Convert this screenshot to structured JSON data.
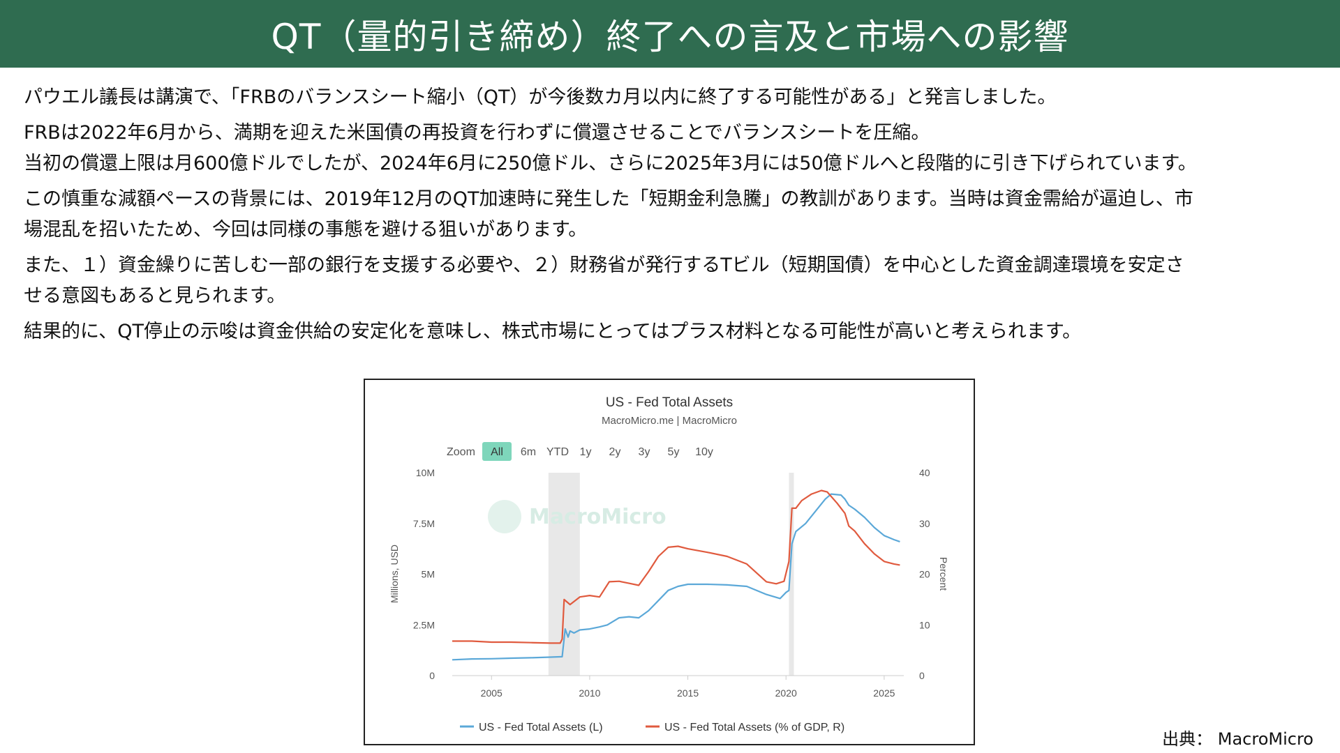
{
  "header": {
    "title": "QT（量的引き締め）終了への言及と市場への影響"
  },
  "paragraphs": [
    {
      "lines": [
        "パウエル議長は講演で、「FRBのバランスシート縮小（QT）が今後数カ月以内に終了する可能性がある」と発言しました。"
      ]
    },
    {
      "lines": [
        "FRBは2022年6月から、満期を迎えた米国債の再投資を行わずに償還させることでバランスシートを圧縮。",
        "当初の償還上限は月600億ドルでしたが、2024年6月に250億ドル、さらに2025年3月には50億ドルへと段階的に引き下げられています。"
      ]
    },
    {
      "lines": [
        "この慎重な減額ペースの背景には、2019年12月のQT加速時に発生した「短期金利急騰」の教訓があります。当時は資金需給が逼迫し、市",
        "場混乱を招いたため、今回は同様の事態を避ける狙いがあります。"
      ]
    },
    {
      "lines": [
        "また、１）資金繰りに苦しむ一部の銀行を支援する必要や、２）財務省が発行するTビル（短期国債）を中心とした資金調達環境を安定さ",
        "せる意図もあると見られます。"
      ]
    },
    {
      "lines": [
        "結果的に、QT停止の示唆は資金供給の安定化を意味し、株式市場にとってはプラス材料となる可能性が高いと考えられます。"
      ]
    }
  ],
  "source": "出典： MacroMicro",
  "chart_data": {
    "type": "line",
    "title": "US - Fed Total Assets",
    "subtitle": "MacroMicro.me | MacroMicro",
    "watermark": "MacroMicro",
    "zoom": {
      "label": "Zoom",
      "options": [
        "All",
        "6m",
        "YTD",
        "1y",
        "2y",
        "3y",
        "5y",
        "10y"
      ],
      "selected": "All"
    },
    "xlabel": "",
    "xlim": [
      2003,
      2026
    ],
    "xticks": [
      "2005",
      "2010",
      "2015",
      "2020",
      "2025"
    ],
    "ylabel_left": "Millions, USD",
    "ylim_left": [
      0,
      10000000
    ],
    "yticks_left": [
      "0",
      "2.5M",
      "5M",
      "7.5M",
      "10M"
    ],
    "ylabel_right": "Percent",
    "ylim_right": [
      0,
      40
    ],
    "yticks_right": [
      "0",
      "10",
      "20",
      "30",
      "40"
    ],
    "grid": false,
    "legend_position": "bottom",
    "recession_bands": [
      [
        2007.9,
        2009.5
      ],
      [
        2020.15,
        2020.4
      ]
    ],
    "colors": {
      "left": "#5ba8d8",
      "right": "#e05a3e",
      "band": "#e8e8e8"
    },
    "series": [
      {
        "name": "US - Fed Total Assets (L)",
        "axis": "left",
        "x": [
          2003.0,
          2004.0,
          2005.0,
          2006.0,
          2007.0,
          2008.0,
          2008.6,
          2008.75,
          2008.9,
          2009.0,
          2009.2,
          2009.5,
          2010.0,
          2010.5,
          2010.9,
          2011.5,
          2012.0,
          2012.5,
          2013.0,
          2013.5,
          2014.0,
          2014.5,
          2015.0,
          2016.0,
          2017.0,
          2018.0,
          2019.0,
          2019.7,
          2020.0,
          2020.15,
          2020.3,
          2020.5,
          2021.0,
          2021.5,
          2022.0,
          2022.3,
          2022.8,
          2023.0,
          2023.2,
          2023.5,
          2024.0,
          2024.5,
          2025.0,
          2025.5,
          2025.8
        ],
        "values": [
          780000,
          820000,
          830000,
          860000,
          880000,
          910000,
          930000,
          2300000,
          1900000,
          2200000,
          2100000,
          2250000,
          2300000,
          2400000,
          2500000,
          2850000,
          2900000,
          2850000,
          3200000,
          3700000,
          4200000,
          4400000,
          4500000,
          4500000,
          4470000,
          4400000,
          4000000,
          3800000,
          4100000,
          4200000,
          6500000,
          7100000,
          7500000,
          8100000,
          8700000,
          8950000,
          8900000,
          8700000,
          8400000,
          8200000,
          7800000,
          7300000,
          6900000,
          6700000,
          6600000
        ]
      },
      {
        "name": "US - Fed Total Assets (% of GDP, R)",
        "axis": "right",
        "x": [
          2003.0,
          2004.0,
          2005.0,
          2006.0,
          2007.0,
          2008.0,
          2008.5,
          2008.6,
          2008.7,
          2009.0,
          2009.5,
          2010.0,
          2010.5,
          2011.0,
          2011.5,
          2012.0,
          2012.5,
          2013.0,
          2013.5,
          2014.0,
          2014.5,
          2015.0,
          2016.0,
          2017.0,
          2018.0,
          2019.0,
          2019.5,
          2019.9,
          2020.15,
          2020.3,
          2020.5,
          2020.8,
          2021.3,
          2021.8,
          2022.1,
          2022.6,
          2023.0,
          2023.2,
          2023.5,
          2024.0,
          2024.5,
          2025.0,
          2025.5,
          2025.8
        ],
        "values": [
          6.8,
          6.8,
          6.6,
          6.6,
          6.5,
          6.4,
          6.4,
          7.2,
          15.0,
          14.0,
          15.5,
          15.8,
          15.5,
          18.5,
          18.6,
          18.2,
          17.8,
          20.5,
          23.5,
          25.3,
          25.5,
          25.0,
          24.3,
          23.5,
          22.0,
          18.5,
          18.1,
          18.6,
          22.5,
          33.0,
          33.0,
          34.5,
          35.8,
          36.5,
          36.2,
          34.0,
          32.0,
          29.5,
          28.5,
          26.0,
          24.0,
          22.5,
          22.0,
          21.8
        ]
      }
    ]
  }
}
